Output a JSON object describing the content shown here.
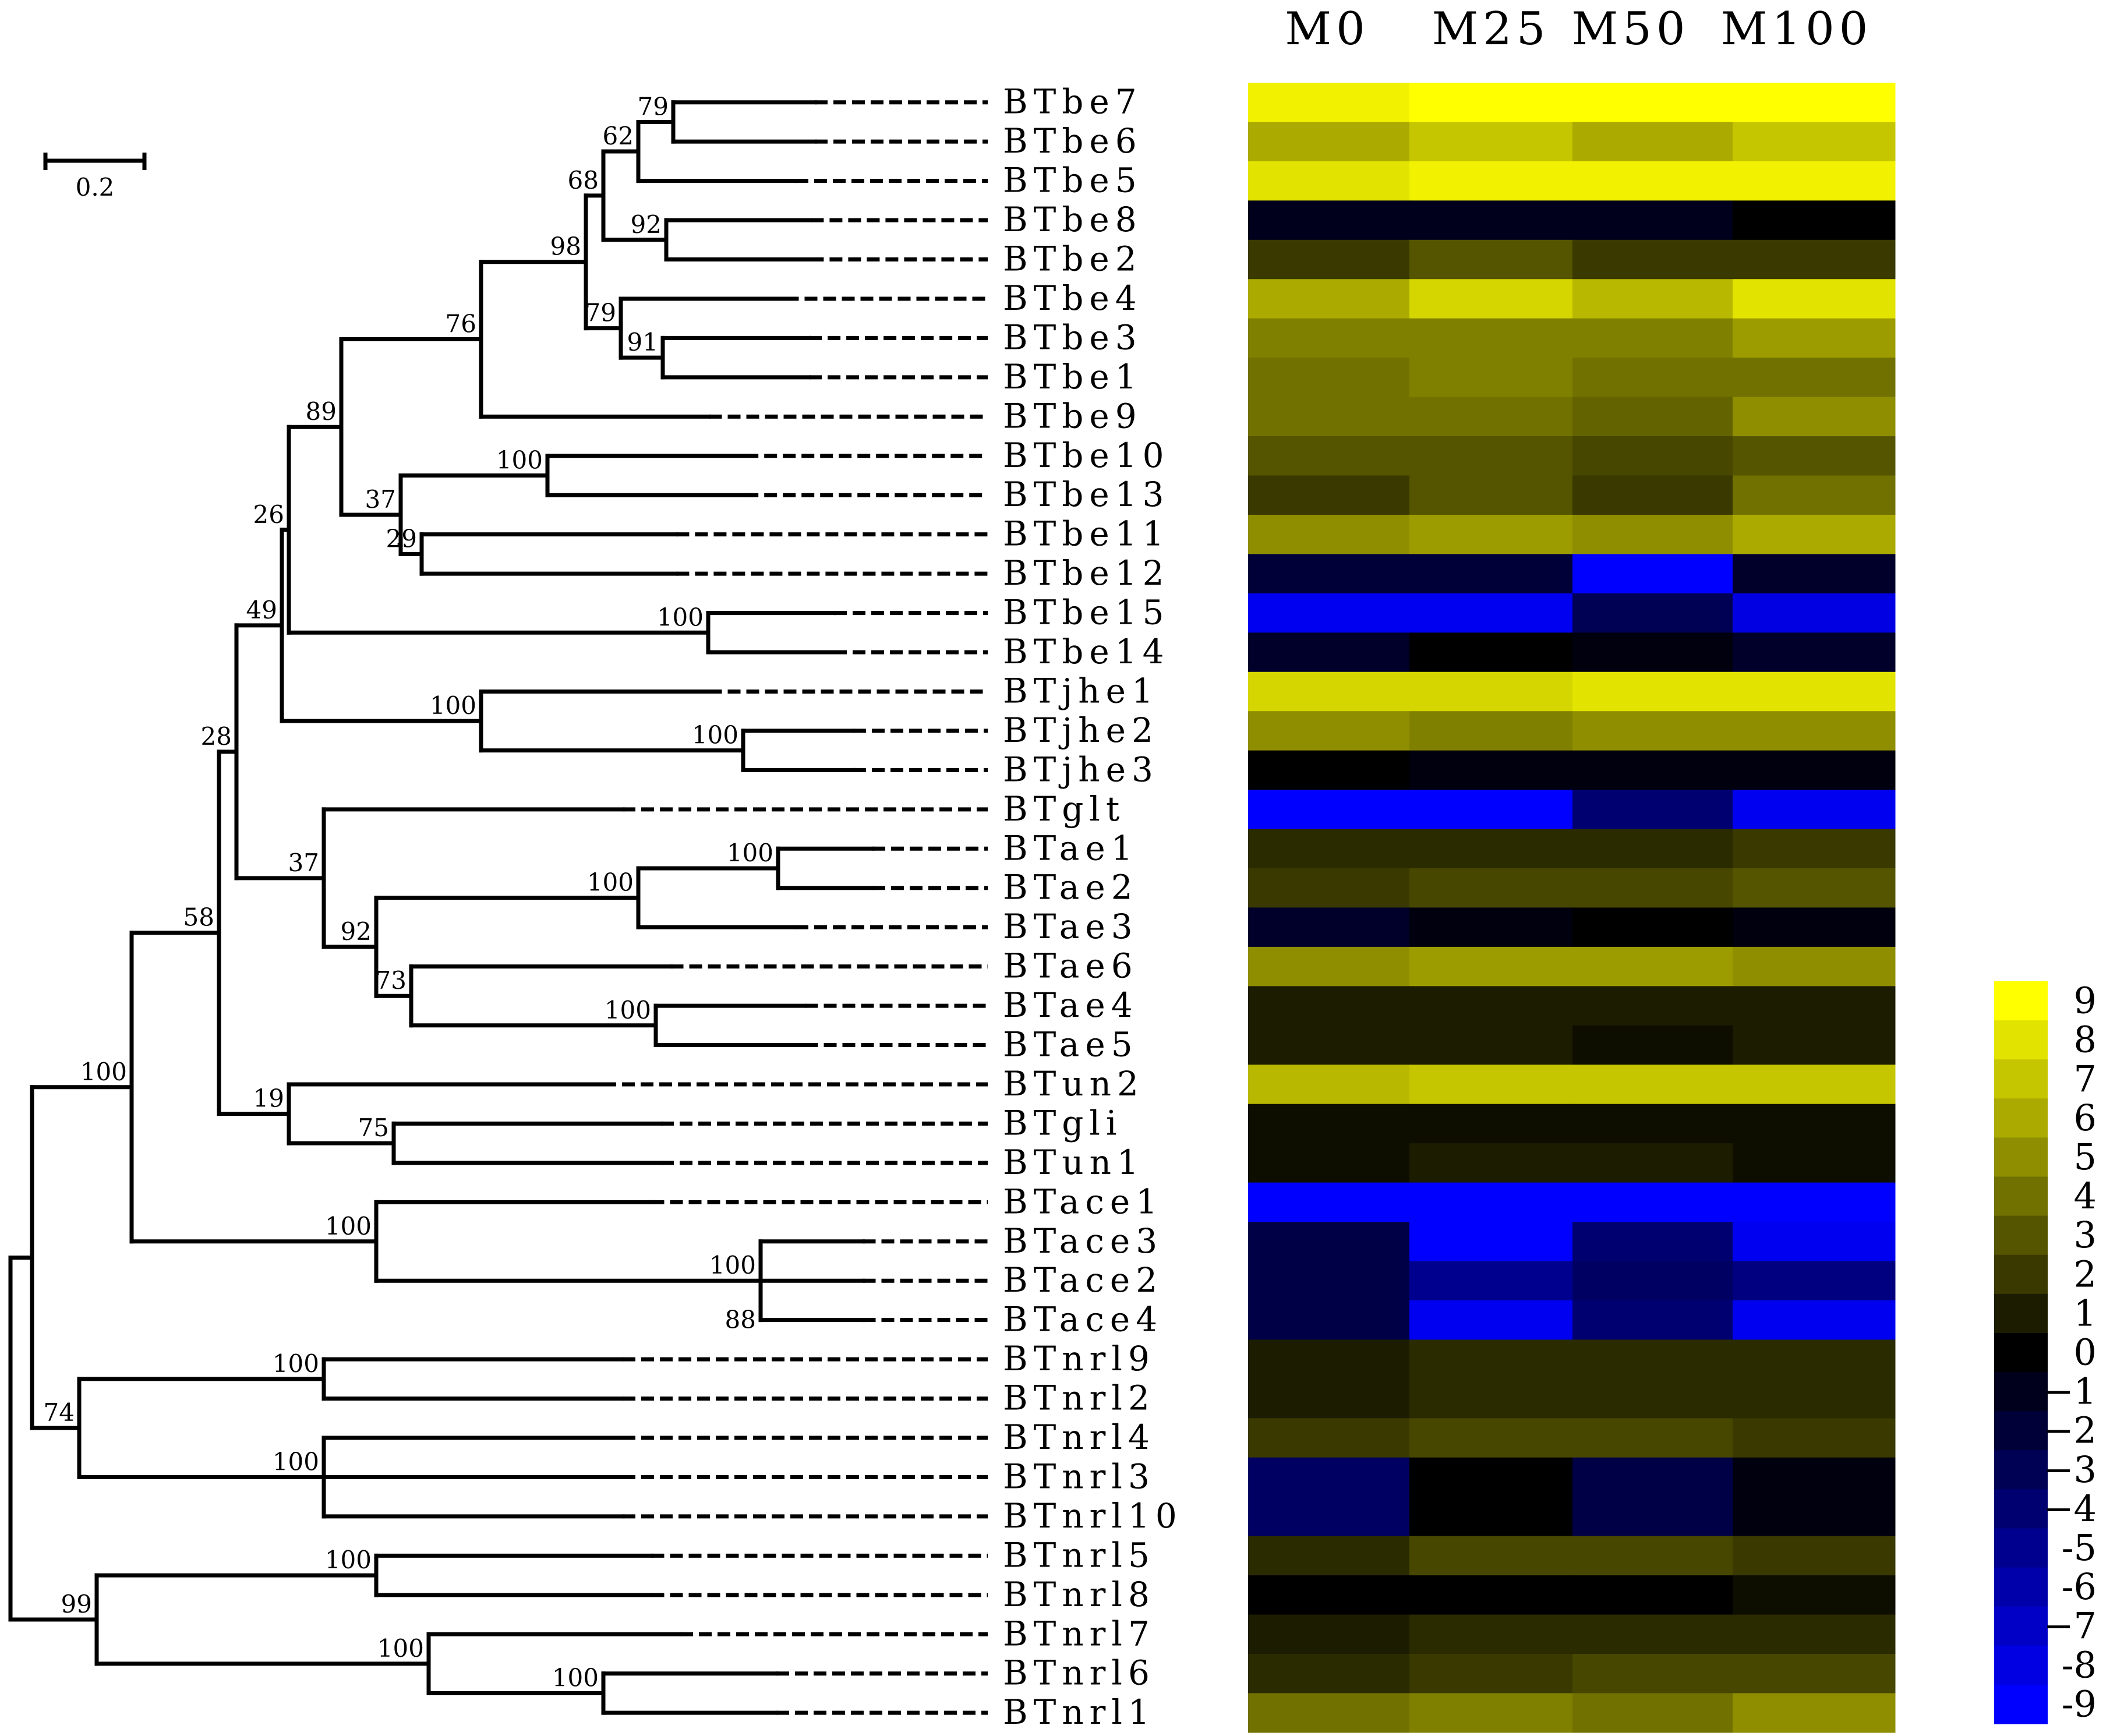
{
  "chart_data": {
    "type": "heatmap",
    "columns": [
      "M0",
      "M25",
      "M50",
      "M100"
    ],
    "rows": [
      "BTbe7",
      "BTbe6",
      "BTbe5",
      "BTbe8",
      "BTbe2",
      "BTbe4",
      "BTbe3",
      "BTbe1",
      "BTbe9",
      "BTbe10",
      "BTbe13",
      "BTbe11",
      "BTbe12",
      "BTbe15",
      "BTbe14",
      "BTjhe1",
      "BTjhe2",
      "BTjhe3",
      "BTglt",
      "BTae1",
      "BTae2",
      "BTae3",
      "BTae6",
      "BTae4",
      "BTae5",
      "BTun2",
      "BTgli",
      "BTun1",
      "BTace1",
      "BTace3",
      "BTace2",
      "BTace4",
      "BTnrl9",
      "BTnrl2",
      "BTnrl4",
      "BTnrl3",
      "BTnrl10",
      "BTnrl5",
      "BTnrl8",
      "BTnrl7",
      "BTnrl6",
      "BTnrl1"
    ],
    "values": [
      [
        8.5,
        9,
        9,
        9
      ],
      [
        6,
        7,
        6,
        7
      ],
      [
        8,
        8.5,
        8.5,
        8.5
      ],
      [
        -1,
        -1,
        -1,
        0
      ],
      [
        2,
        3,
        2,
        2
      ],
      [
        6,
        7.5,
        6.5,
        8
      ],
      [
        4.5,
        4.5,
        4.5,
        5.5
      ],
      [
        4,
        4.5,
        4,
        4
      ],
      [
        4,
        4,
        3.5,
        5
      ],
      [
        3,
        3,
        2.5,
        3
      ],
      [
        2,
        3,
        2,
        4
      ],
      [
        5,
        5.5,
        5,
        6
      ],
      [
        -2,
        -2,
        -9,
        -1.5
      ],
      [
        -8.5,
        -8.5,
        -3,
        -8
      ],
      [
        -1.5,
        0,
        -0.5,
        -1.5
      ],
      [
        7.5,
        7.5,
        8,
        8
      ],
      [
        5,
        4.5,
        5,
        5
      ],
      [
        0,
        -0.5,
        -0.5,
        -0.5
      ],
      [
        -9,
        -9,
        -4,
        -8.5
      ],
      [
        1.5,
        1.5,
        1.5,
        2
      ],
      [
        2,
        2.5,
        2.5,
        3
      ],
      [
        -1.5,
        -0.5,
        0,
        -0.5
      ],
      [
        5,
        5.5,
        5.5,
        5
      ],
      [
        1,
        1,
        1,
        1
      ],
      [
        1,
        1,
        0.5,
        1
      ],
      [
        6.5,
        7,
        7,
        7
      ],
      [
        0.5,
        0.5,
        0.5,
        0.5
      ],
      [
        0.5,
        1,
        1,
        0.5
      ],
      [
        -9,
        -9,
        -9,
        -9
      ],
      [
        -2.5,
        -9,
        -4,
        -8.5
      ],
      [
        -2.5,
        -5,
        -3.5,
        -4.5
      ],
      [
        -2.5,
        -8.5,
        -4,
        -8.5
      ],
      [
        1,
        1.5,
        1.5,
        1.5
      ],
      [
        1,
        1.5,
        1.5,
        1.5
      ],
      [
        2,
        2.5,
        2.5,
        2
      ],
      [
        -3.5,
        0,
        -2.5,
        -0.5
      ],
      [
        -3.5,
        0,
        -2.5,
        -0.5
      ],
      [
        1.5,
        2.5,
        2.5,
        2
      ],
      [
        0,
        0,
        0,
        0.5
      ],
      [
        1,
        1.5,
        1.5,
        1.5
      ],
      [
        1.5,
        2,
        2.5,
        2.5
      ],
      [
        4,
        4.5,
        4,
        5
      ]
    ],
    "colorbar": {
      "ticks": [
        "9",
        "8",
        "7",
        "6",
        "5",
        "4",
        "3",
        "2",
        "1",
        "0",
        "−1",
        "−2",
        "−3",
        "−4",
        "-5",
        "-6",
        "−7",
        "-8",
        "-9"
      ],
      "min": -9,
      "max": 9,
      "low_color": "#0000ff",
      "mid_color": "#000000",
      "high_color": "#ffff00"
    },
    "scale_bar": {
      "label": "0.2",
      "value": 0.2
    },
    "tree_nodes": [
      {
        "id": "n_be7_6",
        "leaves": [
          "BTbe7",
          "BTbe6"
        ],
        "support": "79",
        "height": 0.9
      },
      {
        "id": "n_be765",
        "children": [
          "n_be7_6",
          "BTbe5"
        ],
        "support": "62",
        "height": 1.0
      },
      {
        "id": "n_be82",
        "leaves": [
          "BTbe8",
          "BTbe2"
        ],
        "support": "92",
        "height": 0.92
      },
      {
        "id": "n_be7652",
        "children": [
          "n_be765",
          "n_be82"
        ],
        "support": "68",
        "height": 1.1
      },
      {
        "id": "n_be31",
        "leaves": [
          "BTbe3",
          "BTbe1"
        ],
        "support": "91",
        "height": 0.93
      },
      {
        "id": "n_be431",
        "children": [
          "BTbe4",
          "n_be31"
        ],
        "support": "79",
        "height": 1.05
      },
      {
        "id": "n_be_top",
        "children": [
          "n_be7652",
          "n_be431"
        ],
        "support": "98",
        "height": 1.15
      },
      {
        "id": "n_be9",
        "children": [
          "n_be_top",
          "BTbe9"
        ],
        "support": "76",
        "height": 1.45
      },
      {
        "id": "n_be1013",
        "leaves": [
          "BTbe10",
          "BTbe13"
        ],
        "support": "100",
        "height": 1.26
      },
      {
        "id": "n_be1112",
        "leaves": [
          "BTbe11",
          "BTbe12"
        ],
        "support": "29",
        "height": 1.62
      },
      {
        "id": "n_be_mid",
        "children": [
          "n_be1013",
          "n_be1112"
        ],
        "support": "37",
        "height": 1.68
      },
      {
        "id": "n_be_all",
        "children": [
          "n_be9",
          "n_be_mid"
        ],
        "support": "89",
        "height": 1.85
      },
      {
        "id": "n_be1514",
        "leaves": [
          "BTbe15",
          "BTbe14"
        ],
        "support": "100",
        "height": 0.8
      },
      {
        "id": "n_be_x",
        "children": [
          "n_be_all",
          "n_be1514"
        ],
        "support": "26",
        "height": 2.0
      },
      {
        "id": "n_jhe23",
        "leaves": [
          "BTjhe2",
          "BTjhe3"
        ],
        "support": "100",
        "height": 0.7
      },
      {
        "id": "n_jhe",
        "children": [
          "BTjhe1",
          "n_jhe23"
        ],
        "support": "100",
        "height": 1.45
      },
      {
        "id": "n_be_jhe",
        "children": [
          "n_be_x",
          "n_jhe"
        ],
        "support": "49",
        "height": 2.02
      },
      {
        "id": "n_ae12",
        "leaves": [
          "BTae1",
          "BTae2"
        ],
        "support": "100",
        "height": 0.6
      },
      {
        "id": "n_ae123",
        "children": [
          "n_ae12",
          "BTae3"
        ],
        "support": "100",
        "height": 1.0
      },
      {
        "id": "n_ae45",
        "leaves": [
          "BTae4",
          "BTae5"
        ],
        "support": "100",
        "height": 0.95
      },
      {
        "id": "n_ae645",
        "children": [
          "BTae6",
          "n_ae45"
        ],
        "support": "73",
        "height": 1.65
      },
      {
        "id": "n_ae",
        "children": [
          "n_ae123",
          "n_ae645"
        ],
        "support": "92",
        "height": 1.75
      },
      {
        "id": "n_glt_ae",
        "children": [
          "BTglt",
          "n_ae"
        ],
        "support": "37",
        "height": 1.9
      },
      {
        "id": "n_28",
        "children": [
          "n_be_jhe",
          "n_glt_ae"
        ],
        "support": "28",
        "height": 2.15
      },
      {
        "id": "n_gli_un1",
        "leaves": [
          "BTgli",
          "BTun1"
        ],
        "support": "75",
        "height": 1.7
      },
      {
        "id": "n_un",
        "children": [
          "BTun2",
          "n_gli_un1"
        ],
        "support": "19",
        "height": 2.0
      },
      {
        "id": "n_58",
        "children": [
          "n_28",
          "n_un"
        ],
        "support": "58",
        "height": 2.2
      },
      {
        "id": "n_ace324",
        "leaves": [
          "BTace3",
          "BTace2",
          "BTace4"
        ],
        "support": "100",
        "support2": "88",
        "height": 0.65
      },
      {
        "id": "n_ace",
        "children": [
          "BTace1",
          "n_ace324"
        ],
        "support": "100",
        "height": 1.75
      },
      {
        "id": "n_100top",
        "children": [
          "n_58",
          "n_ace"
        ],
        "support": "100",
        "height": 2.45
      },
      {
        "id": "n_nrl92",
        "leaves": [
          "BTnrl9",
          "BTnrl2"
        ],
        "support": "100",
        "height": 1.9
      },
      {
        "id": "n_nrl4310",
        "leaves": [
          "BTnrl4",
          "BTnrl3",
          "BTnrl10"
        ],
        "support": "100",
        "height": 1.9
      },
      {
        "id": "n_74",
        "children": [
          "n_nrl92",
          "n_nrl4310"
        ],
        "support": "74",
        "height": 2.6
      },
      {
        "id": "n_nrl58",
        "leaves": [
          "BTnrl5",
          "BTnrl8"
        ],
        "support": "100",
        "height": 1.75
      },
      {
        "id": "n_nrl61",
        "leaves": [
          "BTnrl6",
          "BTnrl1"
        ],
        "support": "100",
        "height": 1.1
      },
      {
        "id": "n_nrl761",
        "children": [
          "BTnrl7",
          "n_nrl61"
        ],
        "support": "100",
        "height": 1.6
      },
      {
        "id": "n_99",
        "children": [
          "n_nrl58",
          "n_nrl761"
        ],
        "support": "99",
        "height": 2.55
      }
    ]
  }
}
